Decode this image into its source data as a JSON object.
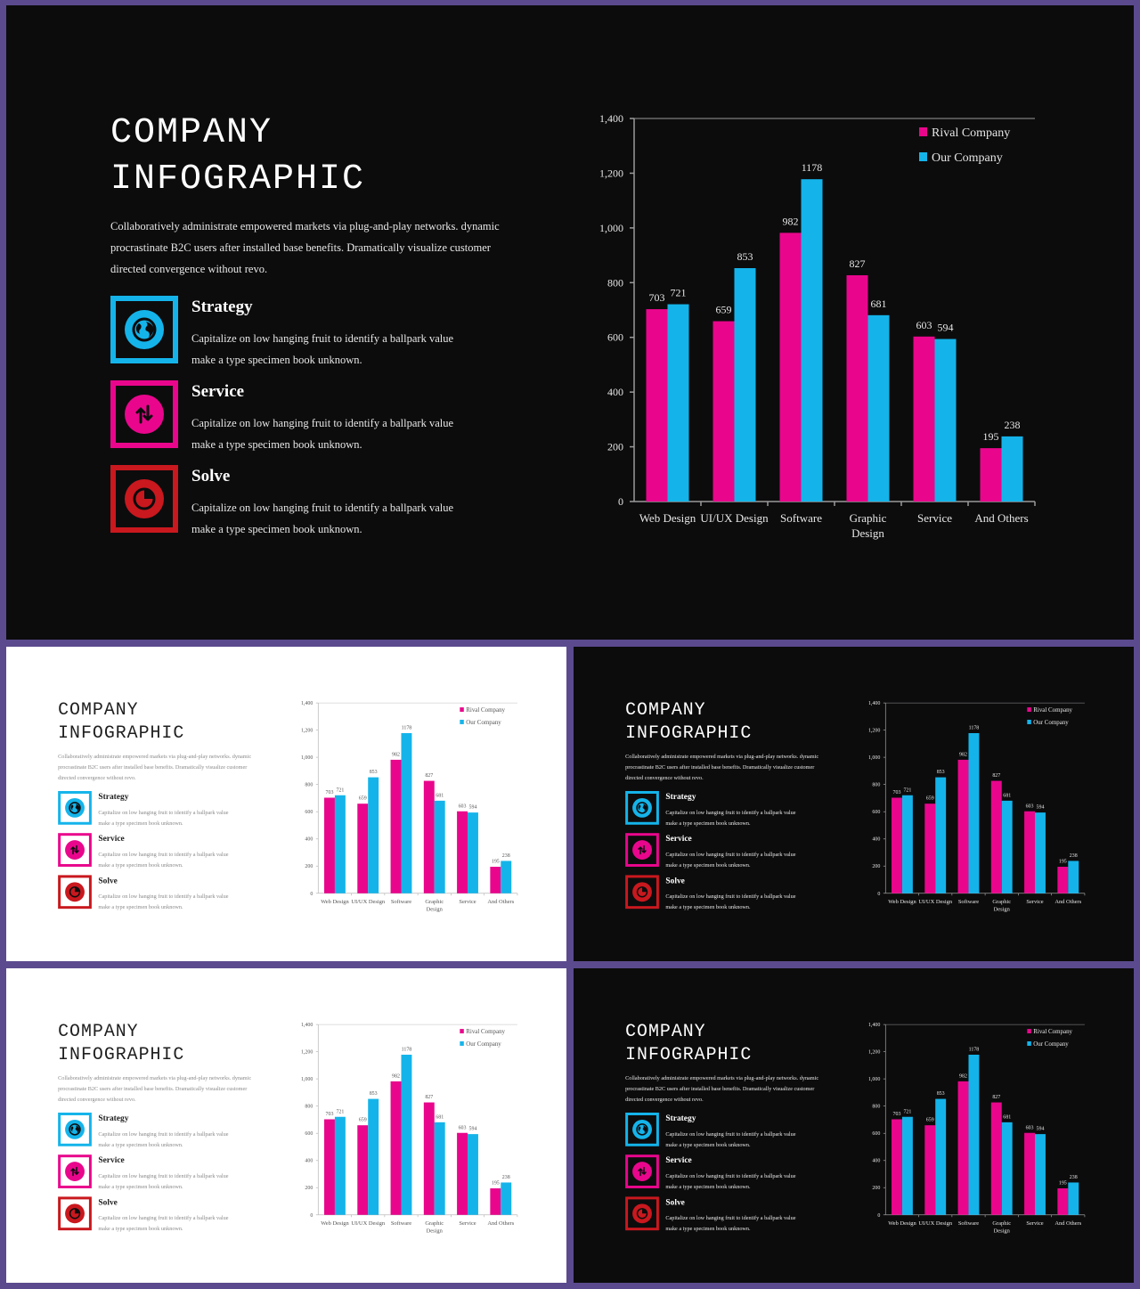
{
  "title_lines": [
    "COMPANY",
    "INFOGRAPHIC"
  ],
  "description": "Collaboratively administrate empowered markets via plug-and-play networks. dynamic procrastinate B2C users after installed base benefits. Dramatically visualize customer directed convergence without revo.",
  "features": [
    {
      "title": "Strategy",
      "desc": "Capitalize on low hanging fruit to identify a ballpark value make a type specimen book unknown.",
      "icon": "globe-icon",
      "color": "#14b4ea"
    },
    {
      "title": "Service",
      "desc": "Capitalize on low hanging fruit to identify a ballpark value make a type specimen book unknown.",
      "icon": "up-down-arrows-icon",
      "color": "#e9068c"
    },
    {
      "title": "Solve",
      "desc": "Capitalize on low hanging fruit to identify a ballpark value make a type specimen book unknown.",
      "icon": "pie-icon",
      "color": "#c9181e"
    }
  ],
  "chart_data": {
    "type": "bar",
    "categories": [
      "Web Design",
      "UI/UX Design",
      "Software",
      "Graphic Design",
      "Service",
      "And Others"
    ],
    "series": [
      {
        "name": "Rival Company",
        "values": [
          703,
          659,
          982,
          827,
          603,
          195
        ],
        "color": "#e9068c"
      },
      {
        "name": "Our Company",
        "values": [
          721,
          853,
          1178,
          681,
          594,
          238
        ],
        "color": "#14b4ea"
      }
    ],
    "ylim": [
      0,
      1400
    ],
    "yticks": [
      0,
      200,
      400,
      600,
      800,
      1000,
      1200,
      1400
    ],
    "ytick_labels": [
      "0",
      "200",
      "400",
      "600",
      "800",
      "1,000",
      "1,200",
      "1,400"
    ],
    "legend": "top-right",
    "grid": false
  },
  "slides": [
    {
      "variant": "main",
      "theme": "dark"
    },
    {
      "variant": "thumbnail",
      "theme": "light"
    },
    {
      "variant": "thumbnail",
      "theme": "dark"
    },
    {
      "variant": "thumbnail",
      "theme": "light"
    },
    {
      "variant": "thumbnail",
      "theme": "dark"
    }
  ]
}
